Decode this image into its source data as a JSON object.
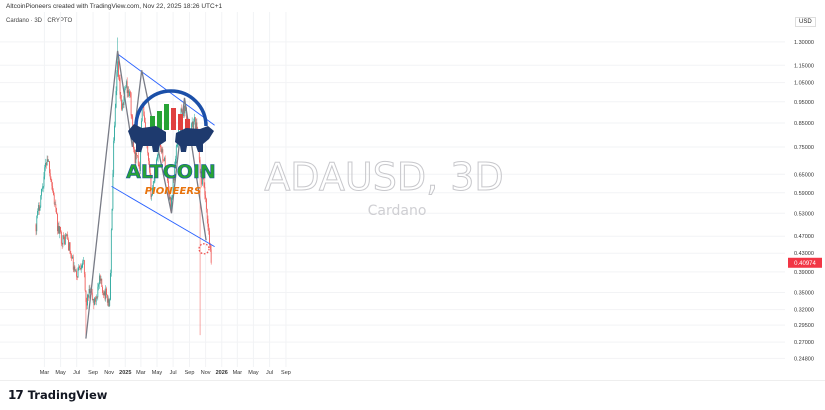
{
  "header": {
    "caption": "AltcoinPioneers created with TradingView.com, Nov 22, 2025 18:26 UTC+1",
    "pair_title": "Cardano · 3D · CRYPTO",
    "currency": "USD"
  },
  "watermark": {
    "symbol": "ADAUSD, 3D",
    "name": "Cardano"
  },
  "logo": {
    "line1": "ALTCOIN",
    "line2": "PIONEERS"
  },
  "footer": {
    "brand": "TradingView",
    "brand_mark": "17"
  },
  "colors": {
    "up": "#26a69a",
    "down": "#ef5350",
    "channel": "#2962ff",
    "pattern": "#787b86",
    "price_tag": "#f23645",
    "logo_green": "#27a335",
    "logo_red": "#e0403f",
    "logo_orange": "#e8730c"
  },
  "chart_data": {
    "type": "candlestick",
    "x_start": "2024-01-29",
    "x_ticks": [
      "Mar",
      "May",
      "Jul",
      "Sep",
      "Nov",
      "2025",
      "Mar",
      "May",
      "Jul",
      "Sep",
      "Nov",
      "2026",
      "Mar",
      "May",
      "Jul",
      "Sep"
    ],
    "x_tick_dates": [
      "2024-03-01",
      "2024-05-01",
      "2024-07-01",
      "2024-09-01",
      "2024-11-01",
      "2025-01-01",
      "2025-03-01",
      "2025-05-01",
      "2025-07-01",
      "2025-09-01",
      "2025-11-01",
      "2026-01-01",
      "2026-03-01",
      "2026-05-01",
      "2026-07-01",
      "2026-09-01"
    ],
    "y_scale": "log",
    "y_ticks": [
      1.3,
      1.15,
      1.05,
      0.95,
      0.85,
      0.75,
      0.65,
      0.59,
      0.53,
      0.47,
      0.43,
      0.39,
      0.35,
      0.32,
      0.295,
      0.27,
      0.248
    ],
    "y_tick_labels": [
      "1.30000",
      "1.15000",
      "1.05000",
      "0.95000",
      "0.85000",
      "0.75000",
      "0.65000",
      "0.59000",
      "0.53000",
      "0.47000",
      "0.43000",
      "0.39000",
      "0.35000",
      "0.32000",
      "0.29500",
      "0.27000",
      "0.24800"
    ],
    "ylim": [
      0.237,
      1.42
    ],
    "last_price": 0.409,
    "last_price_label": "0.40974",
    "close_path": [
      [
        "2024-01-29",
        0.5
      ],
      [
        "2024-02-20",
        0.6
      ],
      [
        "2024-03-12",
        0.72
      ],
      [
        "2024-03-22",
        0.66
      ],
      [
        "2024-04-08",
        0.56
      ],
      [
        "2024-04-20",
        0.49
      ],
      [
        "2024-05-10",
        0.46
      ],
      [
        "2024-05-25",
        0.47
      ],
      [
        "2024-06-10",
        0.42
      ],
      [
        "2024-06-28",
        0.38
      ],
      [
        "2024-07-10",
        0.4
      ],
      [
        "2024-07-25",
        0.42
      ],
      [
        "2024-08-05",
        0.33
      ],
      [
        "2024-08-20",
        0.35
      ],
      [
        "2024-09-06",
        0.33
      ],
      [
        "2024-09-25",
        0.37
      ],
      [
        "2024-10-15",
        0.35
      ],
      [
        "2024-11-03",
        0.33
      ],
      [
        "2024-11-10",
        0.5
      ],
      [
        "2024-11-18",
        0.75
      ],
      [
        "2024-12-02",
        1.15
      ],
      [
        "2024-12-20",
        0.9
      ],
      [
        "2025-01-03",
        1.05
      ],
      [
        "2025-01-20",
        0.97
      ],
      [
        "2025-02-03",
        0.72
      ],
      [
        "2025-02-25",
        0.68
      ],
      [
        "2025-03-06",
        0.95
      ],
      [
        "2025-03-28",
        0.7
      ],
      [
        "2025-04-10",
        0.58
      ],
      [
        "2025-05-10",
        0.78
      ],
      [
        "2025-06-05",
        0.66
      ],
      [
        "2025-06-22",
        0.55
      ],
      [
        "2025-07-12",
        0.72
      ],
      [
        "2025-07-25",
        0.88
      ],
      [
        "2025-08-14",
        0.92
      ],
      [
        "2025-09-01",
        0.8
      ],
      [
        "2025-09-20",
        0.86
      ],
      [
        "2025-10-05",
        0.8
      ],
      [
        "2025-10-10",
        0.65
      ],
      [
        "2025-10-25",
        0.62
      ],
      [
        "2025-11-05",
        0.52
      ],
      [
        "2025-11-15",
        0.46
      ],
      [
        "2025-11-22",
        0.409
      ]
    ],
    "wick_events": [
      [
        "2024-08-05",
        0.275
      ],
      [
        "2024-12-03",
        1.33
      ],
      [
        "2025-10-10",
        0.28
      ]
    ],
    "trendlines": [
      {
        "from": [
          "2024-12-03",
          1.22
        ],
        "to": [
          "2025-12-05",
          0.84
        ]
      },
      {
        "from": [
          "2024-11-10",
          0.61
        ],
        "to": [
          "2025-12-05",
          0.445
        ]
      }
    ],
    "pattern_path": [
      [
        "2024-08-05",
        0.275
      ],
      [
        "2024-12-03",
        1.24
      ],
      [
        "2025-01-28",
        0.75
      ],
      [
        "2025-03-04",
        1.12
      ],
      [
        "2025-06-25",
        0.53
      ],
      [
        "2025-08-13",
        0.97
      ],
      [
        "2025-11-03",
        0.46
      ]
    ],
    "target_marker": [
      "2025-10-26",
      0.44
    ]
  }
}
